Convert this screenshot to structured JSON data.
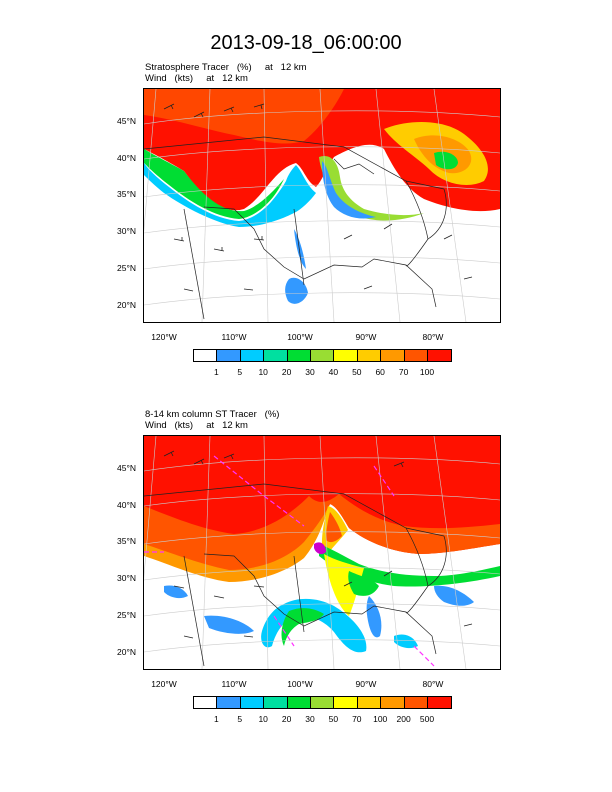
{
  "title": "2013-09-18_06:00:00",
  "panel1": {
    "line1": "Stratosphere Tracer   (%)     at   12 km",
    "line2": "Wind   (kts)     at   12 km",
    "lat_labels": [
      "45°N",
      "40°N",
      "35°N",
      "30°N",
      "25°N",
      "20°N"
    ],
    "lon_labels": [
      "120°W",
      "110°W",
      "100°W",
      "90°W",
      "80°W"
    ],
    "colorbar_labels": [
      "1",
      "5",
      "10",
      "20",
      "30",
      "40",
      "50",
      "60",
      "70",
      "100"
    ],
    "colorbar_colors": [
      "#ffffff",
      "#3399ff",
      "#00ccff",
      "#00e0a0",
      "#00dd33",
      "#99dd33",
      "#ffff00",
      "#ffcc00",
      "#ff9900",
      "#ff5500",
      "#ff1100"
    ]
  },
  "panel2": {
    "line1": "8-14 km column ST Tracer   (%)",
    "line2": "Wind   (kts)     at   12 km",
    "lat_labels": [
      "45°N",
      "40°N",
      "35°N",
      "30°N",
      "25°N",
      "20°N"
    ],
    "lon_labels": [
      "120°W",
      "110°W",
      "100°W",
      "90°W",
      "80°W"
    ],
    "colorbar_labels": [
      "1",
      "5",
      "10",
      "20",
      "30",
      "50",
      "70",
      "100",
      "200",
      "500"
    ],
    "colorbar_colors": [
      "#ffffff",
      "#3399ff",
      "#00ccff",
      "#00e0a0",
      "#00dd33",
      "#99dd33",
      "#ffff00",
      "#ffcc00",
      "#ff9900",
      "#ff5500",
      "#ff1100"
    ]
  }
}
